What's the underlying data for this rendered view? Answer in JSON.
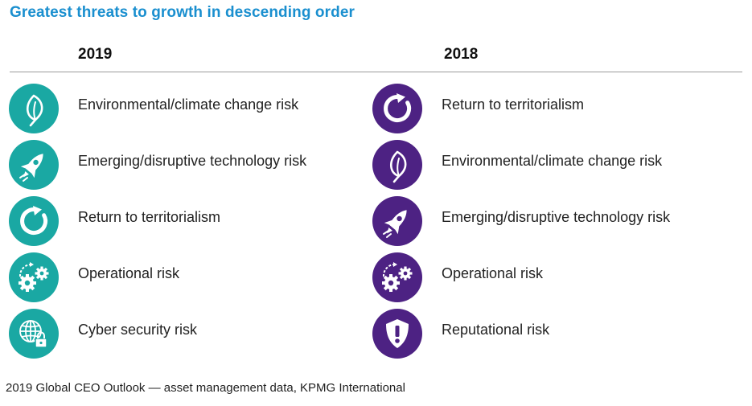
{
  "title": "Greatest threats to growth in descending order",
  "columns": [
    {
      "year": "2019",
      "color": "#1aa8a3",
      "items": [
        {
          "label": "Environmental/climate change risk",
          "icon": "leaf-icon"
        },
        {
          "label": "Emerging/disruptive technology risk",
          "icon": "rocket-icon"
        },
        {
          "label": "Return to territorialism",
          "icon": "circular-arrow-icon"
        },
        {
          "label": "Operational risk",
          "icon": "gears-icon"
        },
        {
          "label": "Cyber security risk",
          "icon": "globe-lock-icon"
        }
      ]
    },
    {
      "year": "2018",
      "color": "#4d2283",
      "items": [
        {
          "label": "Return to territorialism",
          "icon": "circular-arrow-icon"
        },
        {
          "label": "Environmental/climate change risk",
          "icon": "leaf-icon"
        },
        {
          "label": "Emerging/disruptive technology risk",
          "icon": "rocket-icon"
        },
        {
          "label": "Operational risk",
          "icon": "gears-icon"
        },
        {
          "label": "Reputational risk",
          "icon": "shield-exclamation-icon"
        }
      ]
    }
  ],
  "source": "2019 Global CEO Outlook — asset management data, KPMG International"
}
